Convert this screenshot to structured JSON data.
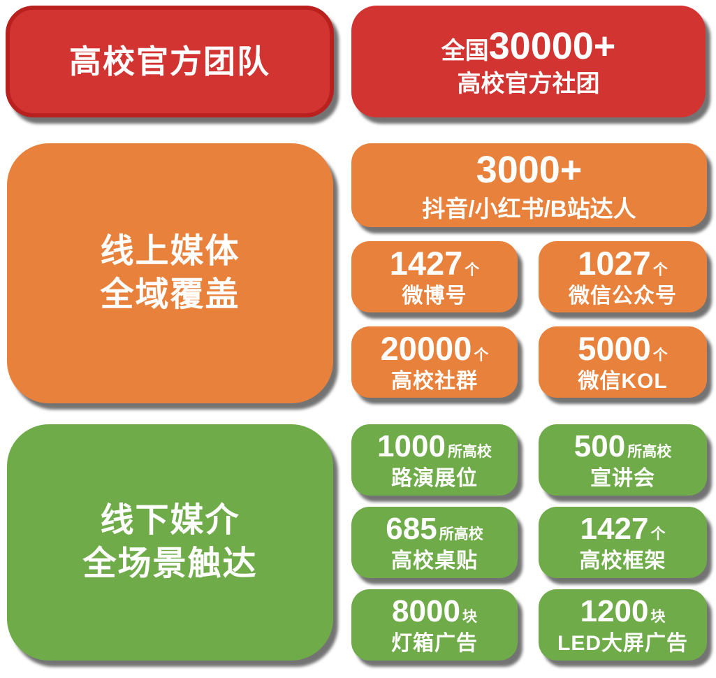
{
  "colors": {
    "red": "#D23432",
    "red_border": "#B9211F",
    "orange": "#E8813C",
    "green": "#6FAC49",
    "text": "#FFFFFF"
  },
  "header": {
    "left_title": "高校官方团队",
    "right": {
      "prefix": "全国",
      "number": "30000+",
      "label": "高校官方社团"
    }
  },
  "online": {
    "panel": {
      "line1": "线上媒体",
      "line2": "全域覆盖"
    },
    "wide": {
      "number": "3000+",
      "label": "抖音/小红书/B站达人"
    },
    "stats": [
      {
        "number": "1427",
        "unit": "个",
        "label": "微博号"
      },
      {
        "number": "1027",
        "unit": "个",
        "label": "微信公众号"
      },
      {
        "number": "20000",
        "unit": "个",
        "label": "高校社群"
      },
      {
        "number": "5000",
        "unit": "个",
        "label": "微信KOL"
      }
    ]
  },
  "offline": {
    "panel": {
      "line1": "线下媒介",
      "line2": "全场景触达"
    },
    "stats": [
      {
        "number": "1000",
        "unit": "所高校",
        "label": "路演展位"
      },
      {
        "number": "500",
        "unit": "所高校",
        "label": "宣讲会"
      },
      {
        "number": "685",
        "unit": "所高校",
        "label": "高校桌贴"
      },
      {
        "number": "1427",
        "unit": "个",
        "label": "高校框架"
      },
      {
        "number": "8000",
        "unit": "块",
        "label": "灯箱广告"
      },
      {
        "number": "1200",
        "unit": "块",
        "label": "LED大屏广告"
      }
    ]
  }
}
